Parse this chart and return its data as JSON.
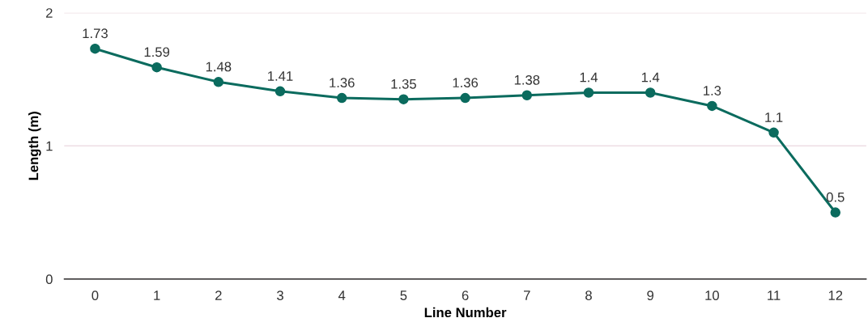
{
  "chart_data": {
    "type": "line",
    "xlabel": "Line Number",
    "ylabel": "Length (m)",
    "categories": [
      "0",
      "1",
      "2",
      "3",
      "4",
      "5",
      "6",
      "7",
      "8",
      "9",
      "10",
      "11",
      "12"
    ],
    "series": [
      {
        "color": "#0b6b5e",
        "values": [
          1.73,
          1.59,
          1.48,
          1.41,
          1.36,
          1.35,
          1.36,
          1.38,
          1.4,
          1.4,
          1.3,
          1.1,
          0.5
        ]
      }
    ],
    "ylim": [
      0,
      2
    ],
    "yticks": [
      0,
      1,
      2
    ],
    "grid": "y",
    "marker": "circle",
    "line_style": "solid",
    "data_labels": true,
    "legend": false
  }
}
